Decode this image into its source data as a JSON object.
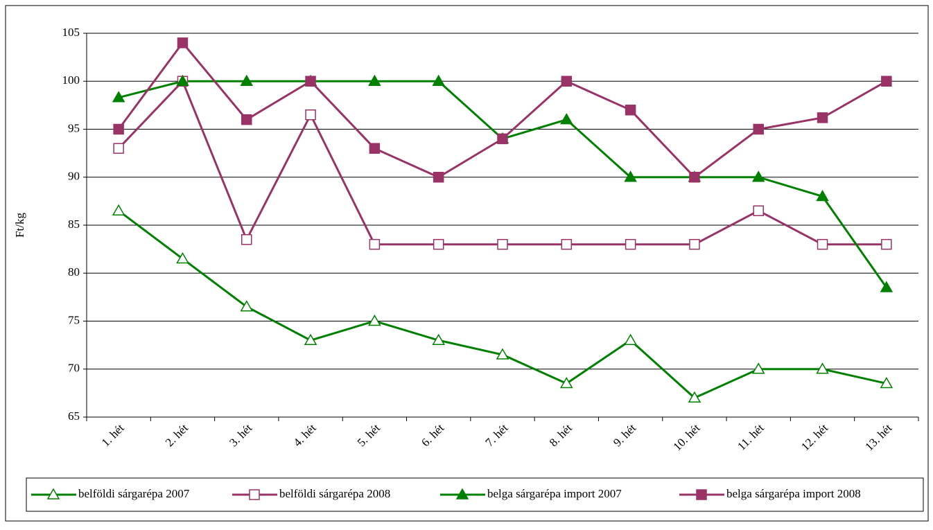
{
  "chart_data": {
    "type": "line",
    "y_label": "Ft/kg",
    "categories": [
      "1. hét",
      "2. hét",
      "3. hét",
      "4. hét",
      "5. hét",
      "6. hét",
      "7. hét",
      "8. hét",
      "9. hét",
      "10. hét",
      "11. hét",
      "12. hét",
      "13. hét"
    ],
    "series": [
      {
        "name": "belföldi sárgarépa 2007",
        "color": "#008000",
        "marker": "triangle",
        "filled": false,
        "values": [
          86.5,
          81.5,
          76.5,
          73,
          75,
          73,
          71.5,
          68.5,
          73,
          67,
          70,
          70,
          68.5
        ]
      },
      {
        "name": "belföldi sárgarépa 2008",
        "color": "#993366",
        "marker": "square",
        "filled": false,
        "values": [
          93,
          100,
          83.5,
          96.5,
          83,
          83,
          83,
          83,
          83,
          83,
          86.5,
          83,
          83
        ]
      },
      {
        "name": "belga sárgarépa import 2007",
        "color": "#008000",
        "marker": "triangle",
        "filled": true,
        "values": [
          98.3,
          100,
          100,
          100,
          100,
          100,
          94,
          96,
          90,
          90,
          90,
          88,
          78.5
        ]
      },
      {
        "name": "belga sárgarépa import 2008",
        "color": "#993366",
        "marker": "square",
        "filled": true,
        "values": [
          95,
          104,
          96,
          100,
          93,
          90,
          94,
          100,
          97,
          90,
          95,
          96.2,
          100
        ]
      }
    ],
    "ylim": [
      65,
      105
    ],
    "yticks": [
      65,
      70,
      75,
      80,
      85,
      90,
      95,
      100,
      105
    ],
    "grid": true,
    "legend": "bottom"
  }
}
